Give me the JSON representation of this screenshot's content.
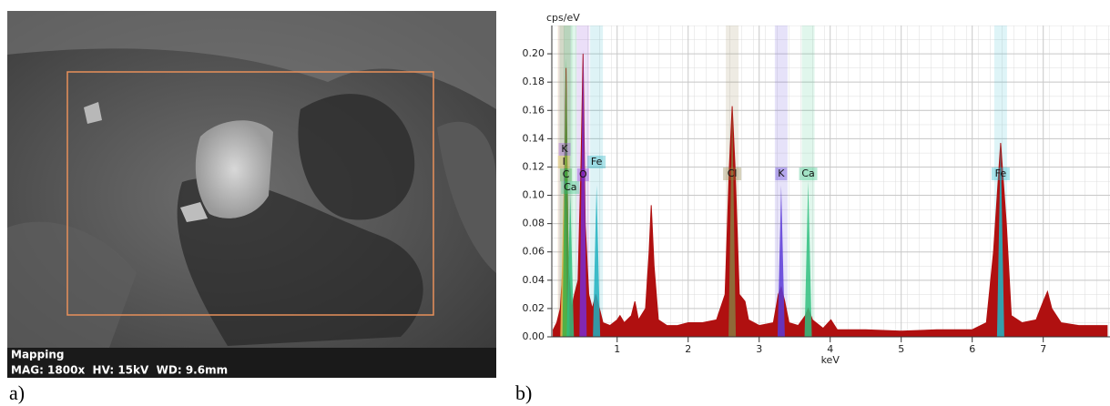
{
  "panel_a": {
    "label": "a)",
    "caption_title": "Mapping",
    "caption_info": "MAG: 1800x  HV: 15kV  WD: 9.6mm"
  },
  "panel_b": {
    "label": "b)"
  },
  "chart_data": {
    "type": "area",
    "y_label": "cps/eV",
    "x_label": "keV",
    "xlim": [
      0.08,
      7.94
    ],
    "ylim": [
      0,
      0.22
    ],
    "xticks": [
      1,
      2,
      3,
      4,
      5,
      6,
      7
    ],
    "yticks": [
      {
        "value": 0,
        "label": "0.00"
      },
      0.02,
      0.04,
      0.06,
      0.08,
      {
        "value": 0.1,
        "label": "0.10"
      },
      0.12,
      0.14,
      0.16,
      0.18,
      {
        "value": 0.2,
        "label": "0.20"
      }
    ],
    "grid": true,
    "series": [
      {
        "name": "spectrum",
        "color": "#b01010",
        "x": [
          0.1,
          0.15,
          0.2,
          0.25,
          0.28,
          0.31,
          0.36,
          0.4,
          0.45,
          0.49,
          0.52,
          0.55,
          0.6,
          0.65,
          0.7,
          0.75,
          0.8,
          0.9,
          1.0,
          1.04,
          1.1,
          1.2,
          1.25,
          1.3,
          1.4,
          1.45,
          1.48,
          1.52,
          1.58,
          1.7,
          1.85,
          2.0,
          2.2,
          2.4,
          2.52,
          2.58,
          2.62,
          2.66,
          2.72,
          2.8,
          2.85,
          3.0,
          3.2,
          3.27,
          3.31,
          3.36,
          3.42,
          3.55,
          3.65,
          3.69,
          3.75,
          3.9,
          4.01,
          4.1,
          4.5,
          5.0,
          5.5,
          6.0,
          6.2,
          6.3,
          6.4,
          6.48,
          6.55,
          6.7,
          6.9,
          7.0,
          7.06,
          7.12,
          7.25,
          7.5,
          7.9
        ],
        "values": [
          0.005,
          0.01,
          0.02,
          0.06,
          0.19,
          0.05,
          0.02,
          0.03,
          0.04,
          0.12,
          0.2,
          0.08,
          0.03,
          0.02,
          0.03,
          0.02,
          0.01,
          0.008,
          0.012,
          0.015,
          0.01,
          0.015,
          0.025,
          0.012,
          0.02,
          0.06,
          0.093,
          0.05,
          0.012,
          0.008,
          0.008,
          0.01,
          0.01,
          0.012,
          0.03,
          0.12,
          0.163,
          0.12,
          0.03,
          0.025,
          0.012,
          0.008,
          0.01,
          0.03,
          0.035,
          0.025,
          0.01,
          0.008,
          0.015,
          0.02,
          0.012,
          0.006,
          0.012,
          0.005,
          0.005,
          0.004,
          0.005,
          0.005,
          0.01,
          0.06,
          0.137,
          0.08,
          0.015,
          0.01,
          0.012,
          0.025,
          0.032,
          0.02,
          0.01,
          0.008,
          0.008
        ]
      }
    ],
    "elements": [
      {
        "label": "K",
        "energy": 0.26,
        "height": 0.135,
        "color": "#9b4fd6"
      },
      {
        "label": "I",
        "energy": 0.25,
        "height": 0.11,
        "color": "#e0c040"
      },
      {
        "label": "C",
        "energy": 0.28,
        "height": 0.197,
        "color": "#3cb043"
      },
      {
        "label": "Ca",
        "energy": 0.34,
        "height": 0.1,
        "color": "#30c080"
      },
      {
        "label": "O",
        "energy": 0.52,
        "height": 0.203,
        "color": "#7a2bd0"
      },
      {
        "label": "Fe",
        "energy": 0.71,
        "height": 0.107,
        "color": "#20b0c0"
      },
      {
        "label": "Cl",
        "energy": 2.62,
        "height": 0.163,
        "color": "#8a7a40"
      },
      {
        "label": "K",
        "energy": 3.31,
        "height": 0.107,
        "color": "#5a3ad8"
      },
      {
        "label": "Ca",
        "energy": 3.69,
        "height": 0.11,
        "color": "#30c080"
      },
      {
        "label": "Fe",
        "energy": 6.4,
        "height": 0.137,
        "color": "#20b8c8"
      }
    ]
  }
}
